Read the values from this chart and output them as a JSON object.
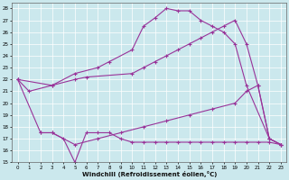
{
  "xlabel": "Windchill (Refroidissement éolien,°C)",
  "bg_color": "#cbe8ed",
  "line_color": "#993399",
  "xlim": [
    -0.5,
    23.5
  ],
  "ylim": [
    15,
    28.5
  ],
  "xticks": [
    0,
    1,
    2,
    3,
    4,
    5,
    6,
    7,
    8,
    9,
    10,
    11,
    12,
    13,
    14,
    15,
    16,
    17,
    18,
    19,
    20,
    21,
    22,
    23
  ],
  "yticks": [
    15,
    16,
    17,
    18,
    19,
    20,
    21,
    22,
    23,
    24,
    25,
    26,
    27,
    28
  ],
  "lines": [
    {
      "x": [
        0,
        1,
        3,
        5,
        7,
        8,
        10,
        11,
        12,
        13,
        14,
        15,
        16,
        17,
        18,
        19,
        20,
        22,
        23
      ],
      "y": [
        22,
        21,
        21.5,
        22.5,
        23,
        23.5,
        24.5,
        26.5,
        27.2,
        28,
        27.8,
        27.8,
        27,
        26.5,
        26,
        25,
        21.5,
        17,
        16.5
      ]
    },
    {
      "x": [
        0,
        3,
        5,
        6,
        10,
        11,
        12,
        13,
        14,
        15,
        16,
        17,
        18,
        19,
        20,
        21,
        22,
        23
      ],
      "y": [
        22,
        21.5,
        22,
        22.2,
        22.5,
        23,
        23.5,
        24,
        24.5,
        25,
        25.5,
        26,
        26.5,
        27,
        25,
        21.5,
        17,
        16.5
      ]
    },
    {
      "x": [
        2,
        3,
        5,
        7,
        9,
        11,
        13,
        15,
        17,
        19,
        20,
        21,
        22,
        23
      ],
      "y": [
        17.5,
        17.5,
        16.5,
        17,
        17.5,
        18,
        18.5,
        19,
        19.5,
        20,
        21,
        21.5,
        17,
        16.5
      ]
    },
    {
      "x": [
        0,
        2,
        3,
        4,
        5,
        6,
        7,
        8,
        9,
        10,
        11,
        12,
        13,
        14,
        15,
        16,
        17,
        18,
        19,
        20,
        21,
        22,
        23
      ],
      "y": [
        22,
        17.5,
        17.5,
        17,
        15,
        17.5,
        17.5,
        17.5,
        17,
        16.7,
        16.7,
        16.7,
        16.7,
        16.7,
        16.7,
        16.7,
        16.7,
        16.7,
        16.7,
        16.7,
        16.7,
        16.7,
        16.5
      ]
    }
  ]
}
